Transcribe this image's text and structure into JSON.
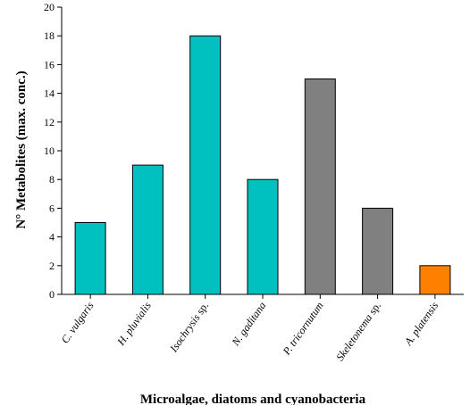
{
  "chart_data": {
    "type": "bar",
    "categories": [
      {
        "text": "C. vulgaris",
        "italic": "C. vulgaris",
        "plain": ""
      },
      {
        "text": "H. pluvialis",
        "italic": "H. pluvialis",
        "plain": ""
      },
      {
        "text": "Isochrysis sp.",
        "italic": "Isochrysis",
        "plain": " sp."
      },
      {
        "text": "N. gaditana",
        "italic": "N. gaditana",
        "plain": ""
      },
      {
        "text": "P. tricornutum",
        "italic": "P. tricornutum",
        "plain": ""
      },
      {
        "text": "Skeletonema sp.",
        "italic": "Skeletonema",
        "plain": " sp."
      },
      {
        "text": "A. platensis",
        "italic": "A. platensis",
        "plain": ""
      }
    ],
    "values": [
      5,
      9,
      18,
      8,
      15,
      6,
      2
    ],
    "bar_colors": [
      "#00C0C0",
      "#00C0C0",
      "#00C0C0",
      "#00C0C0",
      "#808080",
      "#808080",
      "#FF8000"
    ],
    "xlabel": "Microalgae, diatoms and cyanobacteria",
    "ylabel": "N° Metabolites (max. conc.)",
    "ylim": [
      0,
      20
    ],
    "yticks": [
      0,
      2,
      4,
      6,
      8,
      10,
      12,
      14,
      16,
      18,
      20
    ],
    "grid": false,
    "legend": "none"
  }
}
